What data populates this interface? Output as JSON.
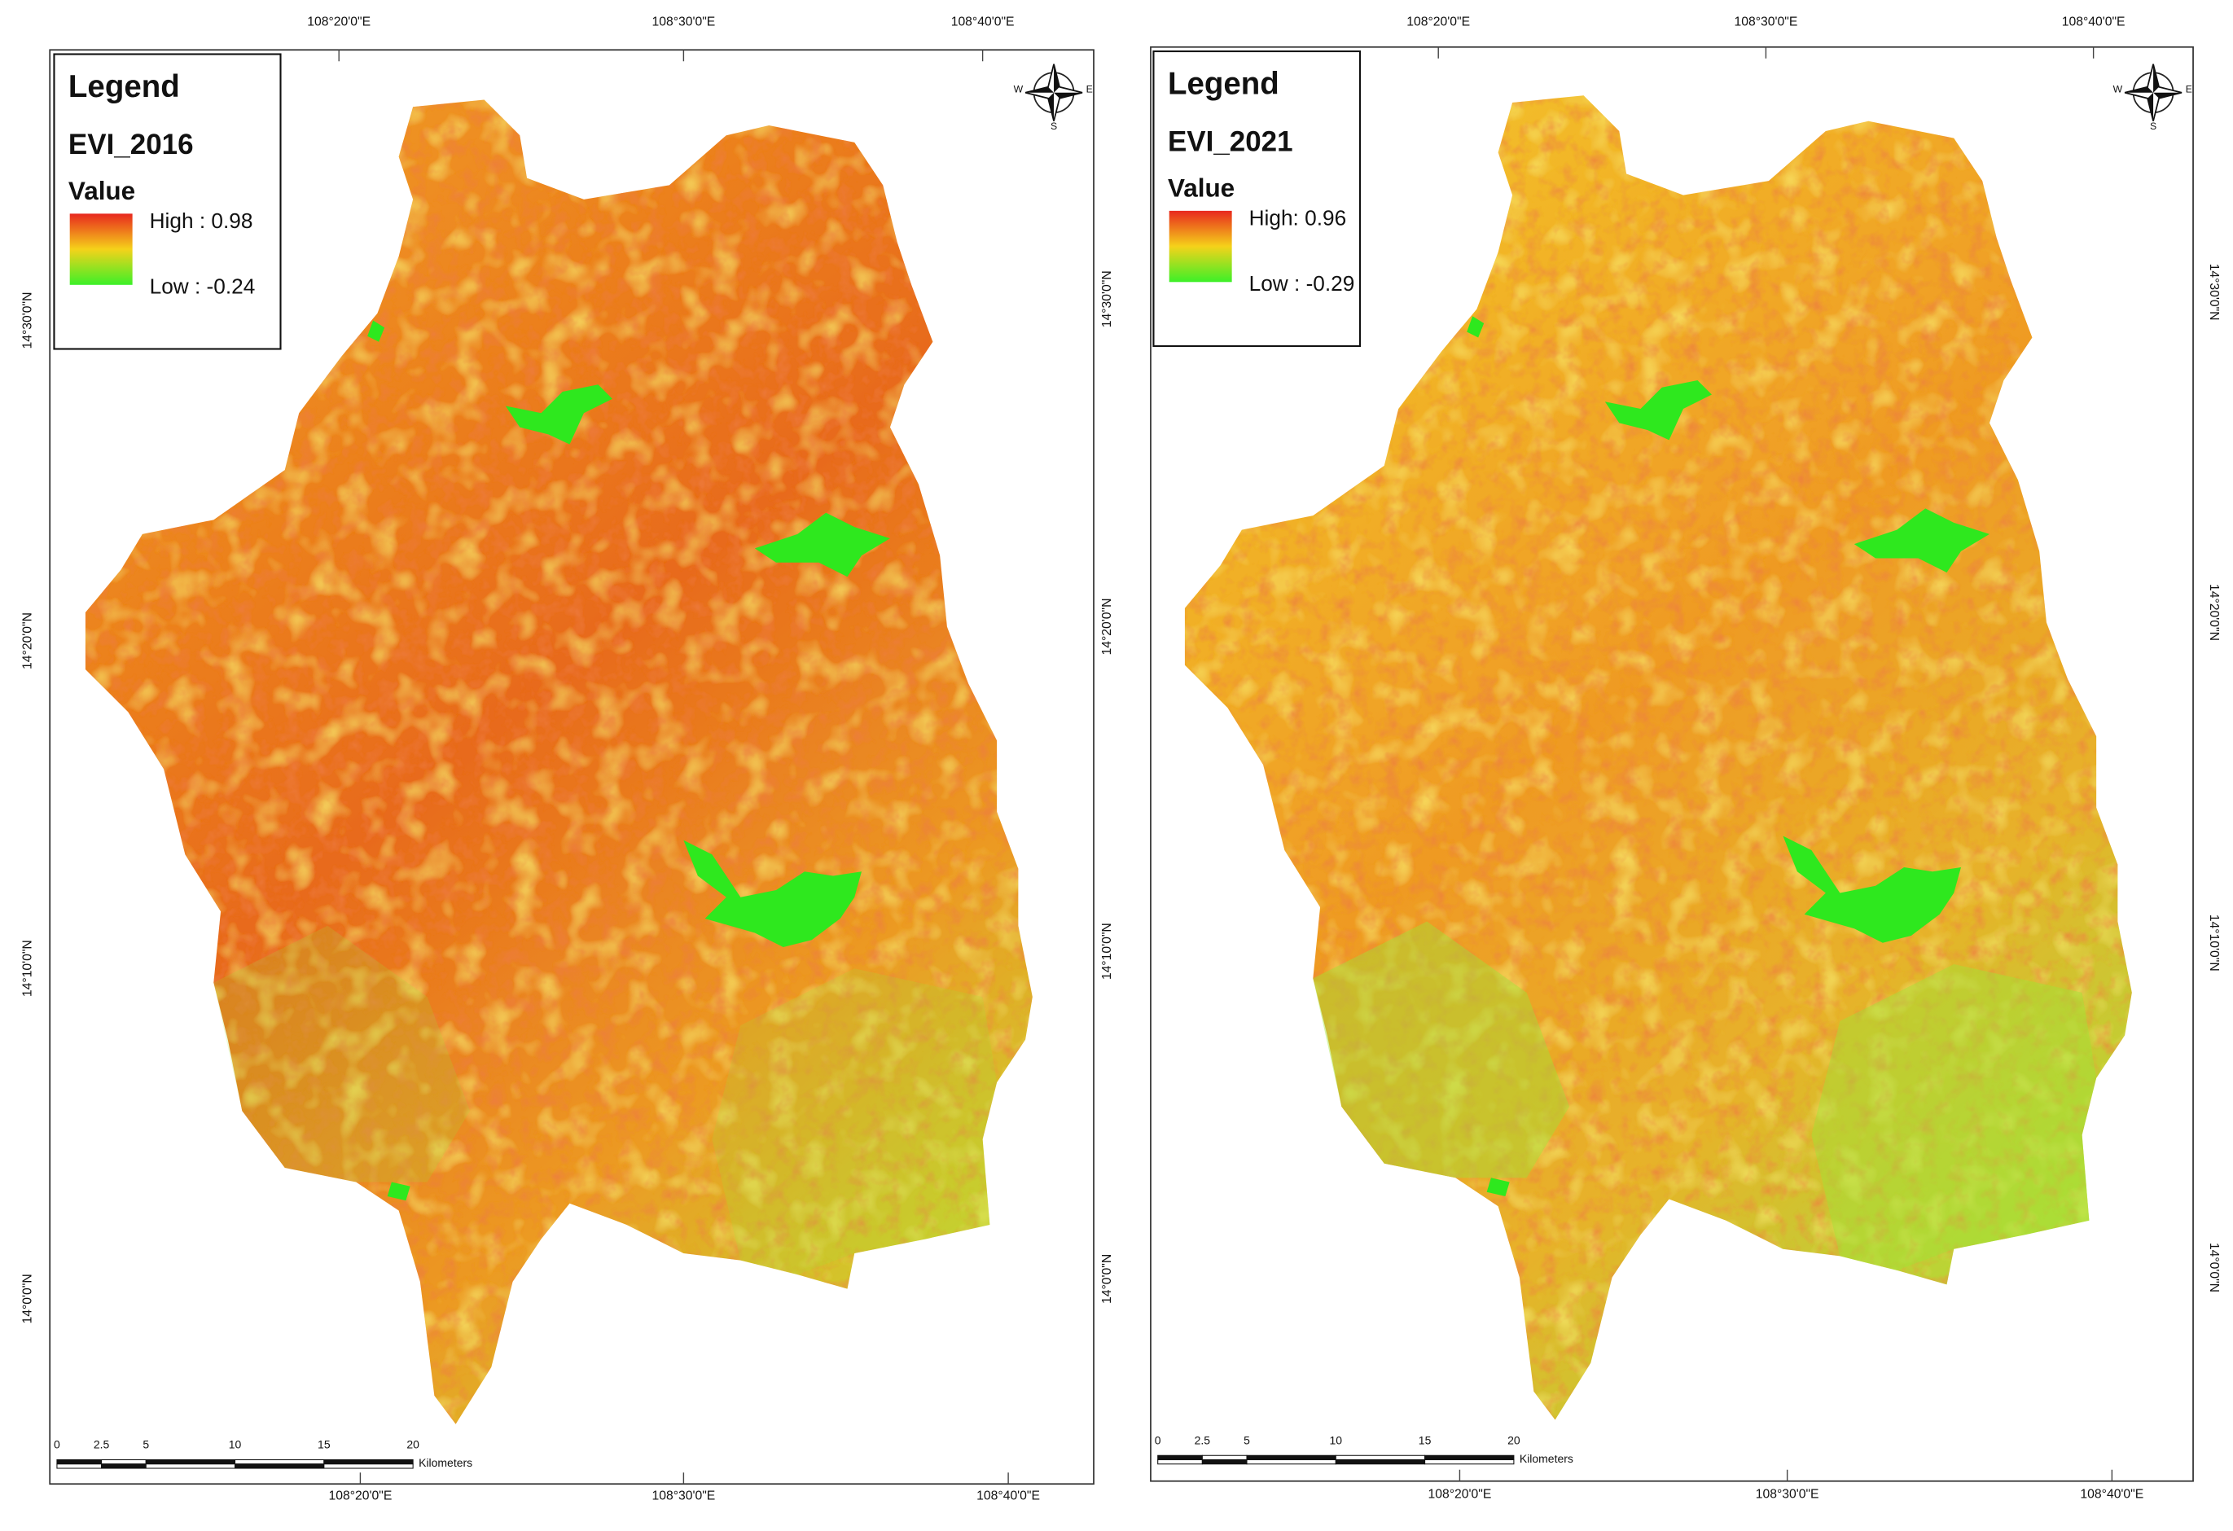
{
  "maps": [
    {
      "legend": {
        "title": "Legend",
        "layer": "EVI_2016",
        "field": "Value",
        "high": "High : 0.98",
        "low": "Low : -0.24"
      },
      "top_labels": [
        "108°20'0\"E",
        "108°30'0\"E",
        "108°40'0\"E"
      ],
      "bottom_labels": [
        "108°20'0\"E",
        "108°30'0\"E",
        "108°40'0\"E"
      ],
      "left_labels": [
        "14°30'0\"N",
        "14°20'0\"N",
        "14°10'0\"N",
        "14°0'0\"N"
      ],
      "scale": {
        "ticks": [
          "0",
          "2.5",
          "5",
          "10",
          "15",
          "20"
        ],
        "unit": "Kilometers"
      },
      "compass": {
        "west": "W",
        "east": "E",
        "south": "S"
      }
    },
    {
      "legend": {
        "title": "Legend",
        "layer": "EVI_2021",
        "field": "Value",
        "high": "High: 0.96",
        "low": "Low : -0.29"
      },
      "top_labels": [
        "108°20'0\"E",
        "108°30'0\"E",
        "108°40'0\"E"
      ],
      "bottom_labels": [
        "108°20'0\"E",
        "108°30'0\"E",
        "108°40'0\"E"
      ],
      "left_labels": [
        "14°30'0\"N",
        "14°20'0\"N",
        "14°10'0\"N",
        "14°0'0\"N"
      ],
      "right_labels": [
        "14°30'0\"N",
        "14°20'0\"N",
        "14°10'0\"N",
        "14°0'0\"N"
      ],
      "scale": {
        "ticks": [
          "0",
          "2.5",
          "5",
          "10",
          "15",
          "20"
        ],
        "unit": "Kilometers"
      },
      "compass": {
        "west": "W",
        "east": "E",
        "south": "S"
      }
    }
  ]
}
